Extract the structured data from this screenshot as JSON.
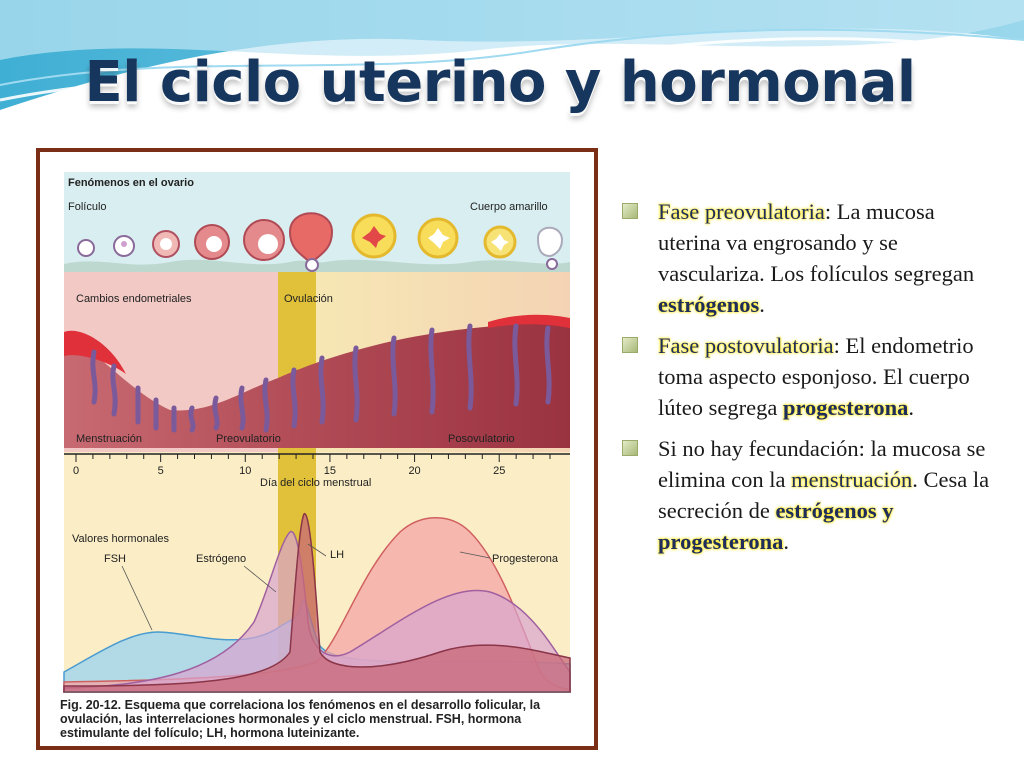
{
  "slide": {
    "title": "El ciclo uterino y hormonal"
  },
  "figure": {
    "ovary_header": "Fenómenos en el ovario",
    "follicle_label": "Folículo",
    "corpus_label": "Cuerpo amarillo",
    "endometrial_label": "Cambios endometriales",
    "ovulation_label": "Ovulación",
    "menstruation_label": "Menstruación",
    "preovulatory_label": "Preovulatorio",
    "postovulatory_label": "Posovulatorio",
    "day_axis_label": "Día del ciclo menstrual",
    "hormone_header": "Valores hormonales",
    "fsh_label": "FSH",
    "estrogen_label": "Estrógeno",
    "lh_label": "LH",
    "progesterone_label": "Progesterona",
    "ticks": [
      "0",
      "5",
      "10",
      "15",
      "20",
      "25"
    ],
    "caption_bold": "Fig. 20-12.",
    "caption_text": "Esquema que correlaciona los fenómenos en el desarrollo folicular, la ovulación, las interrelaciones hormonales y el ciclo menstrual. FSH, hormona estimulante del folículo; LH, hormona luteinizante."
  },
  "bullets": [
    {
      "hl": "Fase preovulatoria",
      "t1": ": La mucosa uterina va engrosando y se vasculariza. Los folículos segregan ",
      "hl2": "estrógenos",
      "t2": "."
    },
    {
      "hl": "Fase postovulatoria",
      "t1": ": El endometrio toma aspecto esponjoso. El cuerpo lúteo segrega ",
      "hl2": "progesterona",
      "t2": "."
    },
    {
      "t0": "Si no hay fecundación: la mucosa se elimina con la ",
      "hl": "menstruación",
      "t1": ". Cesa la secreción de ",
      "hl2": "estrógenos y progesterona",
      "t2": "."
    }
  ],
  "colors": {
    "title": "#17365d",
    "frame": "#7a2e16",
    "highlight": "#ffe700",
    "endometrium": "#b04a55",
    "ovulation_band": "#e2c13a"
  }
}
